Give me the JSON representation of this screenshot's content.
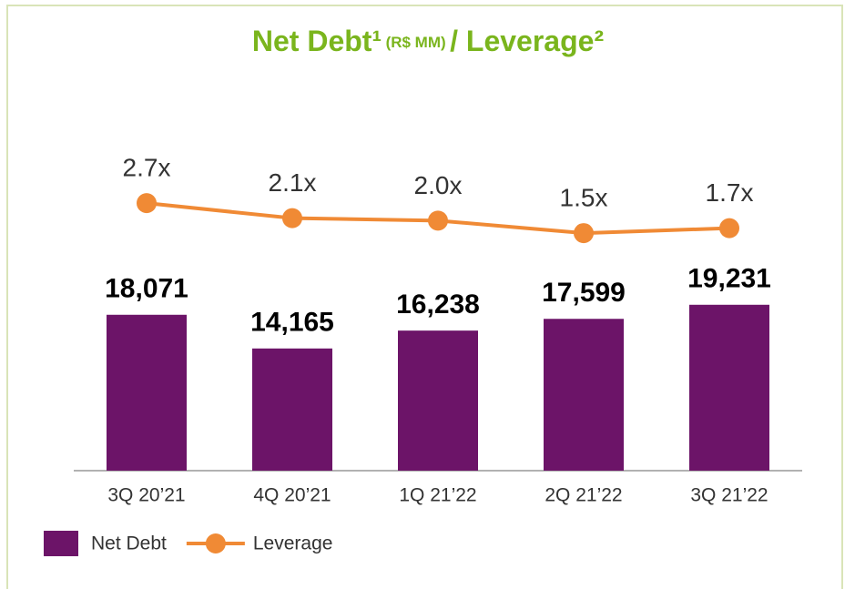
{
  "chart_data": {
    "type": "bar_line",
    "title": "Net Debt¹",
    "title_unit": "(R$ MM)",
    "title_suffix": "/ Leverage²",
    "categories": [
      "3Q 20’21",
      "4Q 20’21",
      "1Q 21’22",
      "2Q 21’22",
      "3Q 21’22"
    ],
    "series": [
      {
        "name": "Net Debt",
        "type": "bar",
        "color": "#6c1468",
        "values": [
          18071,
          14165,
          16238,
          17599,
          19231
        ],
        "value_labels": [
          "18,071",
          "14,165",
          "16,238",
          "17,599",
          "19,231"
        ]
      },
      {
        "name": "Leverage",
        "type": "line",
        "axis": "y2",
        "color": "#f08a35",
        "values": [
          2.7,
          2.1,
          2.0,
          1.5,
          1.7
        ],
        "value_labels": [
          "2.7x",
          "2.1x",
          "2.0x",
          "1.5x",
          "1.7x"
        ]
      }
    ],
    "ylim": [
      0,
      40000
    ],
    "y2lim": [
      -8,
      5.8
    ],
    "legend": "bottom-left"
  }
}
